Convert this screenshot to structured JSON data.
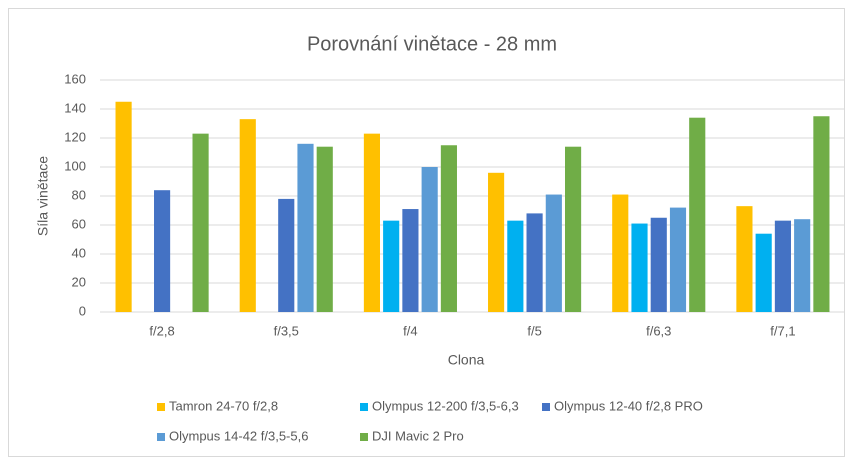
{
  "chart_data": {
    "type": "bar",
    "title": "Porovnání vinětace - 28 mm",
    "x_label": "Clona",
    "y_label": "Síla vinětace",
    "categories": [
      "f/2,8",
      "f/3,5",
      "f/4",
      "f/5",
      "f/6,3",
      "f/7,1"
    ],
    "series": [
      {
        "name": "Tamron 24-70 f/2,8",
        "color": "#ffc000",
        "values": [
          145,
          133,
          123,
          96,
          81,
          73
        ]
      },
      {
        "name": "Olympus 12-200 f/3,5-6,3",
        "color": "#00b0f0",
        "values": [
          null,
          null,
          63,
          63,
          61,
          54
        ]
      },
      {
        "name": "Olympus 12-40 f/2,8 PRO",
        "color": "#4472c4",
        "values": [
          84,
          78,
          71,
          68,
          65,
          63
        ]
      },
      {
        "name": "Olympus 14-42 f/3,5-5,6",
        "color": "#5b9bd5",
        "values": [
          null,
          116,
          100,
          81,
          72,
          64
        ]
      },
      {
        "name": "DJI Mavic 2 Pro",
        "color": "#70ad47",
        "values": [
          123,
          114,
          115,
          114,
          134,
          135
        ]
      }
    ],
    "ylim": [
      0,
      160
    ],
    "yticks": [
      0,
      20,
      40,
      60,
      80,
      100,
      120,
      140,
      160
    ],
    "grid": true,
    "legend": "bottom"
  }
}
